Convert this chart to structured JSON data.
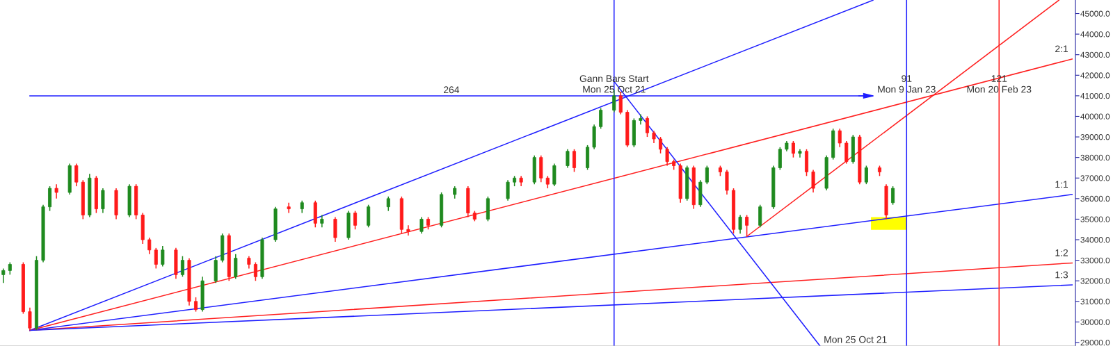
{
  "chart_data": {
    "type": "candlestick",
    "categories": [
      null,
      null,
      null,
      null,
      null,
      null,
      null,
      null,
      null,
      null,
      null,
      null,
      null,
      null,
      null,
      null,
      null,
      null,
      null,
      null,
      null,
      null,
      null,
      null,
      null,
      null,
      null,
      null,
      null,
      null,
      null,
      null,
      null,
      null,
      null,
      null,
      null,
      null,
      null,
      null,
      null,
      null,
      null,
      null,
      null,
      null,
      null,
      null,
      null,
      null,
      null,
      null,
      null,
      null,
      null,
      null,
      null,
      null,
      null,
      null,
      null,
      null,
      null,
      null,
      null,
      null,
      null,
      null,
      null,
      null,
      null,
      null,
      null,
      null,
      null,
      null,
      null,
      null,
      null,
      null,
      null,
      null,
      null,
      null,
      null,
      null,
      null,
      null,
      null,
      null,
      null,
      null,
      null,
      null,
      null,
      null,
      null,
      null,
      null,
      null,
      null,
      null,
      null,
      null,
      null,
      null,
      null,
      null,
      null,
      null,
      null,
      null,
      null,
      null,
      null,
      null,
      null,
      null,
      null,
      null,
      null,
      null,
      null,
      null,
      null,
      null,
      null,
      null,
      null,
      null,
      null,
      null,
      null,
      null,
      null,
      null,
      null,
      null,
      null,
      null,
      null,
      null,
      null,
      null,
      null,
      null,
      null,
      null,
      null,
      null,
      null,
      null,
      null,
      null,
      null,
      null,
      null,
      null,
      null,
      null,
      null,
      null
    ],
    "ohlc": [
      [
        32300,
        32600,
        31900,
        32500
      ],
      [
        32500,
        32900,
        32300,
        32800
      ],
      null,
      [
        32800,
        32900,
        30400,
        30500
      ],
      [
        30500,
        30700,
        29590,
        29700
      ],
      [
        29700,
        33200,
        29600,
        33000
      ],
      [
        33000,
        35700,
        32900,
        35600
      ],
      [
        35600,
        36600,
        35400,
        36500
      ],
      [
        36500,
        36700,
        36000,
        36300
      ],
      null,
      [
        36300,
        37700,
        36200,
        37600
      ],
      [
        37600,
        37700,
        36600,
        36800
      ],
      [
        36800,
        36900,
        35000,
        35200
      ],
      [
        35200,
        37200,
        35100,
        37000
      ],
      [
        37000,
        37100,
        35300,
        35500
      ],
      [
        35500,
        36500,
        35300,
        36400
      ],
      null,
      [
        36400,
        36500,
        35000,
        35200
      ],
      null,
      [
        35200,
        36700,
        35100,
        36600
      ],
      [
        36600,
        36700,
        35000,
        35200
      ],
      [
        35200,
        35300,
        33800,
        34000
      ],
      [
        34000,
        34100,
        33300,
        33500
      ],
      [
        33500,
        33600,
        32600,
        32800
      ],
      [
        32800,
        33700,
        32700,
        33500
      ],
      null,
      [
        33500,
        33600,
        32100,
        32300
      ],
      [
        32300,
        33200,
        32200,
        33000
      ],
      [
        33000,
        33100,
        30800,
        31000
      ],
      [
        31000,
        31200,
        30500,
        30600
      ],
      [
        30600,
        32200,
        30500,
        32000
      ],
      null,
      [
        32000,
        33200,
        31900,
        33000
      ],
      [
        33000,
        34300,
        32900,
        34200
      ],
      [
        34200,
        34300,
        32000,
        32200
      ],
      [
        32200,
        33300,
        32100,
        33100
      ],
      null,
      [
        33100,
        33200,
        32600,
        32800
      ],
      [
        32800,
        32900,
        32000,
        32200
      ],
      [
        32200,
        34100,
        32100,
        34000
      ],
      null,
      [
        34000,
        35600,
        33900,
        35500
      ],
      null,
      [
        35600,
        35800,
        35300,
        35500
      ],
      null,
      [
        35500,
        35900,
        35300,
        35800
      ],
      null,
      [
        35800,
        35900,
        34600,
        34800
      ],
      [
        34800,
        35200,
        34600,
        35000
      ],
      null,
      [
        35000,
        35100,
        33900,
        34100
      ],
      null,
      [
        34100,
        35400,
        34000,
        35300
      ],
      [
        35300,
        35400,
        34500,
        34700
      ],
      null,
      [
        34700,
        35700,
        34600,
        35600
      ],
      null,
      null,
      [
        35600,
        36100,
        35400,
        36000
      ],
      null,
      [
        36000,
        36100,
        34300,
        34500
      ],
      [
        34500,
        34700,
        34200,
        34400
      ],
      null,
      [
        34400,
        35100,
        34300,
        35000
      ],
      [
        35000,
        35100,
        34500,
        34700
      ],
      null,
      [
        34700,
        36300,
        34600,
        36200
      ],
      null,
      [
        36200,
        36600,
        36000,
        36500
      ],
      null,
      [
        36500,
        36600,
        35100,
        35300
      ],
      [
        35300,
        35400,
        34900,
        35000
      ],
      null,
      [
        35000,
        36100,
        34900,
        36000
      ],
      null,
      null,
      [
        36000,
        36900,
        35900,
        36800
      ],
      [
        36800,
        37100,
        36600,
        37000
      ],
      [
        37000,
        37100,
        36600,
        36800
      ],
      null,
      [
        36800,
        38100,
        36700,
        38000
      ],
      [
        38000,
        38100,
        36800,
        37000
      ],
      [
        37000,
        37100,
        36500,
        36700
      ],
      [
        36700,
        37700,
        36600,
        37600
      ],
      null,
      [
        37600,
        38400,
        37500,
        38300
      ],
      [
        38300,
        38400,
        37300,
        37500
      ],
      null,
      [
        37500,
        38600,
        37400,
        38500
      ],
      [
        38500,
        39600,
        38400,
        39500
      ],
      [
        39500,
        40400,
        39400,
        40300
      ],
      null,
      [
        40300,
        41290,
        40200,
        41000
      ],
      [
        41000,
        41200,
        40100,
        40200
      ],
      [
        40200,
        40300,
        38500,
        38600
      ],
      [
        38600,
        39900,
        38500,
        39800
      ],
      [
        39800,
        40100,
        39600,
        39900
      ],
      [
        39900,
        40000,
        39000,
        39200
      ],
      [
        39200,
        39300,
        38700,
        38900
      ],
      [
        38900,
        39000,
        38200,
        38400
      ],
      [
        38400,
        38500,
        37600,
        37800
      ],
      [
        37800,
        37900,
        37400,
        37600
      ],
      [
        37600,
        37700,
        35800,
        36000
      ],
      [
        36000,
        37600,
        35900,
        37500
      ],
      [
        37500,
        37600,
        35500,
        35700
      ],
      [
        35700,
        36900,
        35600,
        36800
      ],
      [
        36800,
        37600,
        36700,
        37500
      ],
      null,
      [
        37500,
        37600,
        37100,
        37300
      ],
      [
        37300,
        37400,
        36200,
        36400
      ],
      [
        36400,
        36500,
        34300,
        34500
      ],
      [
        34500,
        35200,
        34300,
        35100
      ],
      [
        35100,
        35200,
        34160,
        34700
      ],
      null,
      [
        34700,
        35700,
        34600,
        35600
      ],
      null,
      [
        35600,
        37600,
        35500,
        37500
      ],
      [
        37500,
        38500,
        37400,
        38400
      ],
      [
        38400,
        38800,
        38300,
        38700
      ],
      [
        38700,
        38800,
        38000,
        38200
      ],
      [
        38200,
        38400,
        38000,
        38300
      ],
      [
        38300,
        38400,
        37100,
        37300
      ],
      [
        37300,
        37400,
        36300,
        36500
      ],
      null,
      [
        36500,
        38100,
        36400,
        38000
      ],
      [
        38000,
        39400,
        37900,
        39300
      ],
      [
        39300,
        39400,
        38500,
        38700
      ],
      [
        38700,
        38800,
        37700,
        37800
      ],
      [
        37800,
        39100,
        37700,
        39000
      ],
      [
        39000,
        39100,
        36700,
        36800
      ],
      [
        36800,
        37600,
        36700,
        37500
      ],
      null,
      [
        37500,
        37600,
        37100,
        37300
      ],
      [
        36600,
        36700,
        35000,
        35200
      ],
      [
        35800,
        36600,
        35700,
        36500
      ],
      null,
      null,
      null,
      null,
      null,
      null,
      null,
      null,
      null,
      null,
      null,
      null,
      null,
      null,
      null,
      null,
      null,
      null,
      null,
      null,
      null,
      null,
      null,
      null,
      null,
      null,
      null
    ],
    "colors": [
      "#1f8a1f",
      "#1f8a1f",
      null,
      "#ff1a1a",
      "#ff1a1a",
      "#1f8a1f",
      "#1f8a1f",
      "#1f8a1f",
      "#ff1a1a",
      null,
      "#1f8a1f",
      "#ff1a1a",
      "#ff1a1a",
      "#1f8a1f",
      "#ff1a1a",
      "#1f8a1f",
      null,
      "#ff1a1a",
      null,
      "#1f8a1f",
      "#ff1a1a",
      "#ff1a1a",
      "#ff1a1a",
      "#ff1a1a",
      "#1f8a1f",
      null,
      "#ff1a1a",
      "#1f8a1f",
      "#ff1a1a",
      "#ff1a1a",
      "#1f8a1f",
      null,
      "#1f8a1f",
      "#1f8a1f",
      "#ff1a1a",
      "#1f8a1f",
      null,
      "#ff1a1a",
      "#ff1a1a",
      "#1f8a1f",
      null,
      "#1f8a1f",
      null,
      "#ff1a1a",
      null,
      "#1f8a1f",
      null,
      "#ff1a1a",
      "#1f8a1f",
      null,
      "#ff1a1a",
      null,
      "#1f8a1f",
      "#ff1a1a",
      null,
      "#1f8a1f",
      null,
      null,
      "#1f8a1f",
      null,
      "#ff1a1a",
      "#ff1a1a",
      null,
      "#1f8a1f",
      "#ff1a1a",
      null,
      "#1f8a1f",
      null,
      "#1f8a1f",
      null,
      "#ff1a1a",
      "#ff1a1a",
      null,
      "#1f8a1f",
      null,
      null,
      "#1f8a1f",
      "#1f8a1f",
      "#ff1a1a",
      null,
      "#1f8a1f",
      "#ff1a1a",
      "#ff1a1a",
      "#1f8a1f",
      null,
      "#1f8a1f",
      "#ff1a1a",
      null,
      "#1f8a1f",
      "#1f8a1f",
      "#1f8a1f",
      null,
      "#1f8a1f",
      "#ff1a1a",
      "#ff1a1a",
      "#1f8a1f",
      "#1f8a1f",
      "#ff1a1a",
      "#ff1a1a",
      "#ff1a1a",
      "#ff1a1a",
      "#ff1a1a",
      "#ff1a1a",
      "#1f8a1f",
      "#ff1a1a",
      "#1f8a1f",
      "#1f8a1f",
      null,
      "#ff1a1a",
      "#ff1a1a",
      "#ff1a1a",
      "#1f8a1f",
      "#ff1a1a",
      null,
      "#1f8a1f",
      null,
      "#1f8a1f",
      "#1f8a1f",
      "#1f8a1f",
      "#ff1a1a",
      "#1f8a1f",
      "#ff1a1a",
      "#ff1a1a",
      null,
      "#1f8a1f",
      "#1f8a1f",
      "#ff1a1a",
      "#ff1a1a",
      "#1f8a1f",
      "#ff1a1a",
      "#1f8a1f",
      null,
      "#ff1a1a",
      "#ff1a1a",
      "#1f8a1f",
      null,
      null,
      null,
      null,
      null,
      null,
      null,
      null,
      null,
      null,
      null,
      null,
      null,
      null,
      null,
      null,
      null,
      null,
      null,
      null,
      null,
      null,
      null,
      null,
      null,
      null,
      null
    ],
    "ylim": [
      28830,
      45660
    ],
    "yticks": [
      {
        "value": 29000,
        "label": "29000.0"
      },
      {
        "value": 30000,
        "label": "30000.0"
      },
      {
        "value": 31000,
        "label": "31000.0"
      },
      {
        "value": 32000,
        "label": "32000.0"
      },
      {
        "value": 33000,
        "label": "33000.0"
      },
      {
        "value": 34000,
        "label": "34000.0"
      },
      {
        "value": 35000,
        "label": "35000.0"
      },
      {
        "value": 36000,
        "label": "36000.0"
      },
      {
        "value": 37000,
        "label": "37000.0"
      },
      {
        "value": 38000,
        "label": "38000.0"
      },
      {
        "value": 39000,
        "label": "39000.0"
      },
      {
        "value": 40000,
        "label": "40000.0"
      },
      {
        "value": 41000,
        "label": "41000.0"
      },
      {
        "value": 42000,
        "label": "42000.0"
      },
      {
        "value": 43000,
        "label": "43000.0"
      },
      {
        "value": 44000,
        "label": "44000.0"
      },
      {
        "value": 45000,
        "label": "45000.0"
      }
    ],
    "tick_labels": "y",
    "series": [
      {
        "type": "line",
        "color": "#1e1eff",
        "values": [
          null,
          null,
          null,
          null,
          29590,
          null,
          null,
          null,
          null,
          null,
          null,
          null,
          null,
          null,
          null,
          null,
          null,
          null,
          null,
          null,
          null,
          null,
          null,
          null,
          null,
          null,
          null,
          null,
          null,
          null,
          null,
          null,
          null,
          null,
          null,
          null,
          null,
          null,
          null,
          null,
          null,
          null,
          null,
          null,
          null,
          null,
          null,
          null,
          null,
          null,
          null,
          null,
          null,
          null,
          null,
          null,
          null,
          null,
          null,
          null,
          null,
          null,
          null,
          null,
          null,
          null,
          null,
          null,
          null,
          null,
          null,
          null,
          null,
          null,
          null,
          null,
          null,
          null,
          null,
          null,
          null,
          null,
          null,
          null,
          null,
          null,
          null,
          null,
          null,
          null,
          null,
          null,
          null,
          null,
          null,
          null,
          null,
          null,
          null,
          null,
          null,
          null,
          null,
          null,
          null,
          null,
          null,
          null,
          null,
          null,
          null,
          null,
          null,
          null,
          null,
          null,
          null,
          null,
          null,
          null,
          null,
          null,
          null,
          null,
          null,
          null,
          null,
          null,
          null,
          null,
          null,
          45650,
          null,
          null,
          null,
          null,
          null,
          null,
          null,
          null,
          null,
          null,
          null,
          null,
          null,
          null,
          null,
          null,
          null,
          null,
          null,
          null,
          null,
          null,
          null,
          null,
          null,
          null,
          null,
          null,
          null,
          null
        ]
      },
      {
        "type": "line",
        "color": "#ff2020",
        "name": "2:1",
        "values": [
          null,
          null,
          null,
          null,
          29590,
          null,
          null,
          null,
          null,
          null,
          null,
          null,
          null,
          null,
          null,
          null,
          null,
          null,
          null,
          null,
          null,
          null,
          null,
          null,
          null,
          null,
          null,
          null,
          null,
          null,
          null,
          null,
          null,
          null,
          null,
          null,
          null,
          null,
          null,
          null,
          null,
          null,
          null,
          null,
          null,
          null,
          null,
          null,
          null,
          null,
          null,
          null,
          null,
          null,
          null,
          null,
          null,
          null,
          null,
          null,
          null,
          null,
          null,
          null,
          null,
          null,
          null,
          null,
          null,
          null,
          null,
          null,
          null,
          null,
          null,
          null,
          null,
          null,
          null,
          null,
          null,
          null,
          null,
          null,
          null,
          null,
          null,
          null,
          null,
          null,
          null,
          null,
          null,
          null,
          null,
          null,
          null,
          null,
          null,
          null,
          null,
          null,
          null,
          null,
          null,
          null,
          null,
          null,
          null,
          null,
          null,
          null,
          null,
          null,
          null,
          null,
          null,
          null,
          null,
          null,
          null,
          null,
          null,
          null,
          null,
          null,
          null,
          null,
          null,
          null,
          null,
          null,
          null,
          null,
          null,
          null,
          null,
          null,
          null,
          null,
          null,
          null,
          null,
          null,
          null,
          null,
          null,
          null,
          null,
          null,
          null,
          null,
          null,
          null,
          null,
          null,
          null,
          null,
          null,
          null,
          null,
          42790
        ]
      },
      {
        "type": "line",
        "color": "#1e1eff",
        "name": "1:1",
        "values": [
          null,
          null,
          null,
          null,
          29590,
          null,
          null,
          null,
          null,
          null,
          null,
          null,
          null,
          null,
          null,
          null,
          null,
          null,
          null,
          null,
          null,
          null,
          null,
          null,
          null,
          null,
          null,
          null,
          null,
          null,
          null,
          null,
          null,
          null,
          null,
          null,
          null,
          null,
          null,
          null,
          null,
          null,
          null,
          null,
          null,
          null,
          null,
          null,
          null,
          null,
          null,
          null,
          null,
          null,
          null,
          null,
          null,
          null,
          null,
          null,
          null,
          null,
          null,
          null,
          null,
          null,
          null,
          null,
          null,
          null,
          null,
          null,
          null,
          null,
          null,
          null,
          null,
          null,
          null,
          null,
          null,
          null,
          null,
          null,
          null,
          null,
          null,
          null,
          null,
          null,
          null,
          null,
          null,
          null,
          null,
          null,
          null,
          null,
          null,
          null,
          null,
          null,
          null,
          null,
          null,
          null,
          null,
          null,
          null,
          null,
          null,
          null,
          null,
          null,
          null,
          null,
          null,
          null,
          null,
          null,
          null,
          null,
          null,
          null,
          null,
          null,
          null,
          null,
          null,
          null,
          null,
          null,
          null,
          null,
          null,
          null,
          null,
          null,
          null,
          null,
          null,
          null,
          null,
          null,
          null,
          null,
          null,
          null,
          null,
          null,
          null,
          null,
          null,
          null,
          null,
          null,
          null,
          null,
          null,
          null,
          null,
          36200
        ]
      },
      {
        "type": "line",
        "color": "#ff2020",
        "name": "1:2",
        "values": [
          null,
          null,
          null,
          null,
          29590,
          null,
          null,
          null,
          null,
          null,
          null,
          null,
          null,
          null,
          null,
          null,
          null,
          null,
          null,
          null,
          null,
          null,
          null,
          null,
          null,
          null,
          null,
          null,
          null,
          null,
          null,
          null,
          null,
          null,
          null,
          null,
          null,
          null,
          null,
          null,
          null,
          null,
          null,
          null,
          null,
          null,
          null,
          null,
          null,
          null,
          null,
          null,
          null,
          null,
          null,
          null,
          null,
          null,
          null,
          null,
          null,
          null,
          null,
          null,
          null,
          null,
          null,
          null,
          null,
          null,
          null,
          null,
          null,
          null,
          null,
          null,
          null,
          null,
          null,
          null,
          null,
          null,
          null,
          null,
          null,
          null,
          null,
          null,
          null,
          null,
          null,
          null,
          null,
          null,
          null,
          null,
          null,
          null,
          null,
          null,
          null,
          null,
          null,
          null,
          null,
          null,
          null,
          null,
          null,
          null,
          null,
          null,
          null,
          null,
          null,
          null,
          null,
          null,
          null,
          null,
          null,
          null,
          null,
          null,
          null,
          null,
          null,
          null,
          null,
          null,
          null,
          null,
          null,
          null,
          null,
          null,
          null,
          null,
          null,
          null,
          null,
          null,
          null,
          null,
          null,
          null,
          null,
          null,
          null,
          null,
          null,
          null,
          null,
          null,
          null,
          null,
          null,
          null,
          null,
          null,
          null,
          32870
        ]
      },
      {
        "type": "line",
        "color": "#1e1eff",
        "name": "1:3",
        "values": [
          null,
          null,
          null,
          null,
          29590,
          null,
          null,
          null,
          null,
          null,
          null,
          null,
          null,
          null,
          null,
          null,
          null,
          null,
          null,
          null,
          null,
          null,
          null,
          null,
          null,
          null,
          null,
          null,
          null,
          null,
          null,
          null,
          null,
          null,
          null,
          null,
          null,
          null,
          null,
          null,
          null,
          null,
          null,
          null,
          null,
          null,
          null,
          null,
          null,
          null,
          null,
          null,
          null,
          null,
          null,
          null,
          null,
          null,
          null,
          null,
          null,
          null,
          null,
          null,
          null,
          null,
          null,
          null,
          null,
          null,
          null,
          null,
          null,
          null,
          null,
          null,
          null,
          null,
          null,
          null,
          null,
          null,
          null,
          null,
          null,
          null,
          null,
          null,
          null,
          null,
          null,
          null,
          null,
          null,
          null,
          null,
          null,
          null,
          null,
          null,
          null,
          null,
          null,
          null,
          null,
          null,
          null,
          null,
          null,
          null,
          null,
          null,
          null,
          null,
          null,
          null,
          null,
          null,
          null,
          null,
          null,
          null,
          null,
          null,
          null,
          null,
          null,
          null,
          null,
          null,
          null,
          null,
          null,
          null,
          null,
          null,
          null,
          null,
          null,
          null,
          null,
          null,
          null,
          null,
          null,
          null,
          null,
          null,
          null,
          null,
          null,
          null,
          null,
          null,
          null,
          null,
          null,
          null,
          null,
          null,
          null,
          31800
        ]
      },
      {
        "type": "line",
        "color": "#1e1eff",
        "name": "Mon 25 Oct 21",
        "values": [
          null,
          null,
          null,
          null,
          null,
          null,
          null,
          null,
          null,
          null,
          null,
          null,
          null,
          null,
          null,
          null,
          null,
          null,
          null,
          null,
          null,
          null,
          null,
          null,
          null,
          null,
          null,
          null,
          null,
          null,
          null,
          null,
          null,
          null,
          null,
          null,
          null,
          null,
          null,
          null,
          null,
          null,
          null,
          null,
          null,
          null,
          null,
          null,
          null,
          null,
          null,
          null,
          null,
          null,
          null,
          null,
          null,
          null,
          null,
          null,
          null,
          null,
          null,
          null,
          null,
          null,
          null,
          null,
          null,
          null,
          null,
          null,
          null,
          null,
          null,
          null,
          null,
          null,
          null,
          null,
          null,
          null,
          null,
          null,
          null,
          null,
          null,
          null,
          null,
          null,
          null,
          null,
          41700,
          null,
          null,
          null,
          null,
          null,
          null,
          null,
          null,
          null,
          null,
          null,
          null,
          null,
          null,
          null,
          null,
          null,
          null,
          null,
          null,
          null,
          null,
          null,
          null,
          null,
          null,
          null,
          null,
          null,
          null,
          28840,
          null,
          null,
          null,
          null,
          null,
          null,
          null,
          null,
          null,
          null,
          null,
          null,
          null,
          null,
          null,
          null,
          null,
          null,
          null,
          null,
          null,
          null,
          null,
          null,
          null,
          null,
          null,
          null,
          null,
          null,
          null,
          null,
          null,
          null,
          null,
          null,
          null,
          null
        ]
      },
      {
        "type": "line",
        "color": "#ff2020",
        "values": [
          null,
          null,
          null,
          null,
          null,
          null,
          null,
          null,
          null,
          null,
          null,
          null,
          null,
          null,
          null,
          null,
          null,
          null,
          null,
          null,
          null,
          null,
          null,
          null,
          null,
          null,
          null,
          null,
          null,
          null,
          null,
          null,
          null,
          null,
          null,
          null,
          null,
          null,
          null,
          null,
          null,
          null,
          null,
          null,
          null,
          null,
          null,
          null,
          null,
          null,
          null,
          null,
          null,
          null,
          null,
          null,
          null,
          null,
          null,
          null,
          null,
          null,
          null,
          null,
          null,
          null,
          null,
          null,
          null,
          null,
          null,
          null,
          null,
          null,
          null,
          null,
          null,
          null,
          null,
          null,
          null,
          null,
          null,
          null,
          null,
          null,
          null,
          null,
          null,
          null,
          null,
          null,
          null,
          null,
          null,
          null,
          null,
          null,
          null,
          null,
          null,
          null,
          null,
          null,
          null,
          null,
          null,
          null,
          null,
          null,
          null,
          null,
          34160,
          null,
          null,
          null,
          null,
          null,
          null,
          null,
          null,
          null,
          null,
          null,
          null,
          null,
          null,
          null,
          null,
          null,
          null,
          null,
          null,
          null,
          null,
          null,
          null,
          null,
          null,
          null,
          null,
          null,
          null,
          null,
          null,
          null,
          null,
          null,
          null,
          null,
          null,
          null,
          null,
          null,
          null,
          null,
          null,
          null,
          null,
          45650,
          null,
          null
        ]
      },
      {
        "type": "line",
        "color": "#1e1eff",
        "name": "264",
        "values": [
          null,
          null,
          null,
          null,
          41000,
          null,
          null,
          null,
          null,
          null,
          null,
          null,
          null,
          null,
          null,
          null,
          null,
          null,
          null,
          null,
          null,
          null,
          null,
          null,
          null,
          null,
          null,
          null,
          null,
          null,
          null,
          null,
          null,
          null,
          null,
          null,
          null,
          null,
          null,
          null,
          null,
          null,
          null,
          null,
          null,
          null,
          null,
          null,
          null,
          null,
          null,
          null,
          null,
          null,
          null,
          null,
          null,
          null,
          null,
          null,
          null,
          null,
          null,
          null,
          null,
          null,
          null,
          null,
          null,
          null,
          null,
          null,
          null,
          null,
          null,
          null,
          null,
          null,
          null,
          null,
          null,
          null,
          null,
          null,
          null,
          null,
          null,
          null,
          null,
          null,
          null,
          null,
          null,
          null,
          null,
          null,
          null,
          null,
          null,
          null,
          null,
          null,
          null,
          null,
          null,
          null,
          null,
          null,
          null,
          null,
          null,
          null,
          null,
          null,
          null,
          null,
          null,
          null,
          null,
          null,
          null,
          null,
          null,
          null,
          null,
          null,
          null,
          null,
          null,
          null,
          null,
          41000,
          null,
          null,
          null,
          null,
          null,
          null,
          null,
          null,
          null,
          null,
          null,
          null,
          null,
          null,
          null,
          null,
          null,
          null,
          null,
          null,
          null,
          null,
          null,
          null,
          null,
          null,
          null,
          null,
          null,
          null
        ]
      }
    ],
    "annotations": [
      "Gann Bars Start\nMon 25 Oct 21",
      "91\nMon 9 Jan 23",
      "121\nMon 20 Feb 23"
    ]
  }
}
